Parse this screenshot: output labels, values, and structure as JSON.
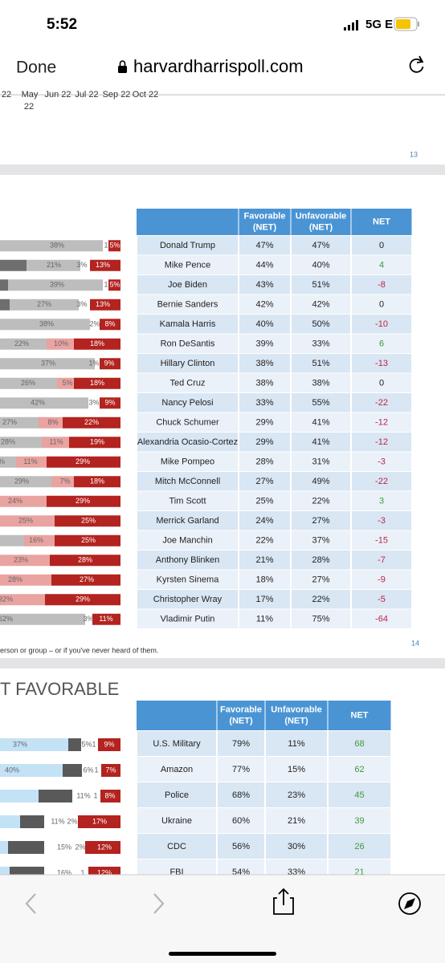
{
  "status_bar": {
    "time": "5:52",
    "network": "5G E"
  },
  "browser": {
    "done": "Done",
    "url": "harvardharrispoll.com"
  },
  "slide_13": {
    "axis_labels": [
      "22",
      "May",
      "Jun 22",
      "Jul 22",
      "Sep 22",
      "Oct 22"
    ],
    "axis_label_line2": "22",
    "page": "13"
  },
  "slide_14": {
    "header": [
      [
        "Favorable",
        "(NET)"
      ],
      [
        "Unfavorable",
        "(NET)"
      ],
      [
        "NET"
      ]
    ],
    "rows": [
      [
        "Donald Trump",
        "47%",
        "47%",
        "0"
      ],
      [
        "Mike Pence",
        "44%",
        "40%",
        "4"
      ],
      [
        "Joe Biden",
        "43%",
        "51%",
        "-8"
      ],
      [
        "Bernie Sanders",
        "42%",
        "42%",
        "0"
      ],
      [
        "Kamala Harris",
        "40%",
        "50%",
        "-10"
      ],
      [
        "Ron DeSantis",
        "39%",
        "33%",
        "6"
      ],
      [
        "Hillary Clinton",
        "38%",
        "51%",
        "-13"
      ],
      [
        "Ted Cruz",
        "38%",
        "38%",
        "0"
      ],
      [
        "Nancy Pelosi",
        "33%",
        "55%",
        "-22"
      ],
      [
        "Chuck Schumer",
        "29%",
        "41%",
        "-12"
      ],
      [
        "Alexandria Ocasio-Cortez",
        "29%",
        "41%",
        "-12"
      ],
      [
        "Mike Pompeo",
        "28%",
        "31%",
        "-3"
      ],
      [
        "Mitch McConnell",
        "27%",
        "49%",
        "-22"
      ],
      [
        "Tim Scott",
        "25%",
        "22%",
        "3"
      ],
      [
        "Merrick Garland",
        "24%",
        "27%",
        "-3"
      ],
      [
        "Joe Manchin",
        "22%",
        "37%",
        "-15"
      ],
      [
        "Anthony Blinken",
        "21%",
        "28%",
        "-7"
      ],
      [
        "Kyrsten Sinema",
        "18%",
        "27%",
        "-9"
      ],
      [
        "Christopher Wray",
        "17%",
        "22%",
        "-5"
      ],
      [
        "Vladimir Putin",
        "11%",
        "75%",
        "-64"
      ]
    ],
    "bars": [
      [
        "38%",
        "1",
        "5%"
      ],
      [
        "21%",
        "3%",
        "13%"
      ],
      [
        "39%",
        "1",
        "5%"
      ],
      [
        "27%",
        "3%",
        "13%"
      ],
      [
        "38%",
        "2%",
        "8%"
      ],
      [
        "22%",
        "10%",
        "18%"
      ],
      [
        "37%",
        "1%",
        "9%"
      ],
      [
        "26%",
        "5%",
        "18%"
      ],
      [
        "42%",
        "3%",
        "9%"
      ],
      [
        "27%",
        "8%",
        "22%"
      ],
      [
        "28%",
        "11%",
        "19%"
      ],
      [
        "%",
        "11%",
        "29%"
      ],
      [
        "29%",
        "7%",
        "18%"
      ],
      [
        "24%",
        "29%"
      ],
      [
        "25%",
        "25%"
      ],
      [
        "16%",
        "25%"
      ],
      [
        "23%",
        "28%"
      ],
      [
        "28%",
        "27%"
      ],
      [
        "32%",
        "29%"
      ],
      [
        "62%",
        "3%",
        "11%"
      ]
    ],
    "footnote": "erson or group – or if you've never heard of them.",
    "page": "14"
  },
  "slide_15": {
    "title": "T FAVORABLE",
    "header": [
      [
        "Favorable",
        "(NET)"
      ],
      [
        "Unfavorable",
        "(NET)"
      ],
      [
        "NET"
      ]
    ],
    "rows": [
      [
        "U.S. Military",
        "79%",
        "11%",
        "68"
      ],
      [
        "Amazon",
        "77%",
        "15%",
        "62"
      ],
      [
        "Police",
        "68%",
        "23%",
        "45"
      ],
      [
        "Ukraine",
        "60%",
        "21%",
        "39"
      ],
      [
        "CDC",
        "56%",
        "30%",
        "26"
      ],
      [
        "FBI",
        "54%",
        "33%",
        "21"
      ]
    ],
    "bars": [
      [
        "37%",
        "5%",
        "1",
        "9%"
      ],
      [
        "40%",
        "6%",
        "1",
        "7%"
      ],
      [
        "11%",
        "1",
        "8%"
      ],
      [
        "11%",
        "2%",
        "17%"
      ],
      [
        "15%",
        "2%",
        "12%"
      ],
      [
        "16%",
        "1",
        "12%"
      ]
    ]
  }
}
